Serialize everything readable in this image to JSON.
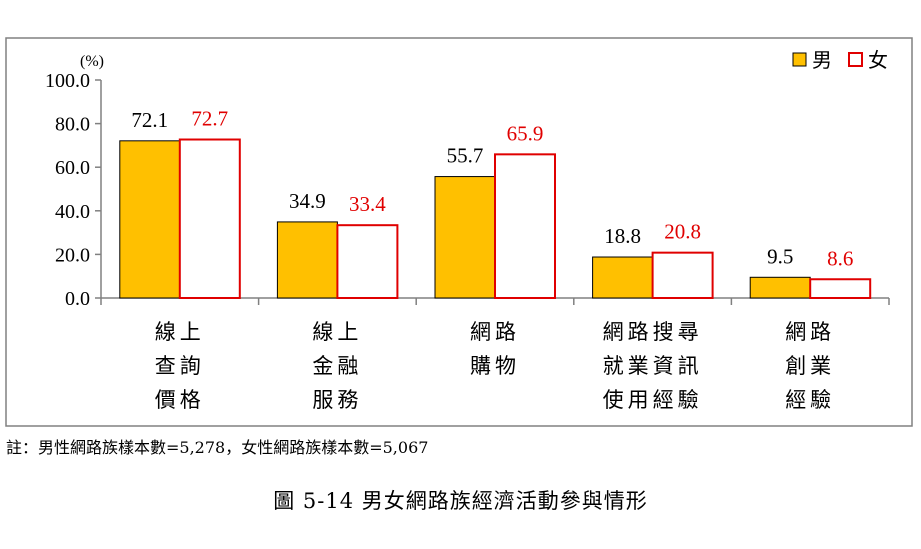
{
  "chart_data": {
    "type": "bar",
    "unit": "(%)",
    "categories": [
      [
        "線上",
        "查詢",
        "價格"
      ],
      [
        "線上",
        "金融",
        "服務"
      ],
      [
        "網路",
        "購物"
      ],
      [
        "網路搜尋",
        "就業資訊",
        "使用經驗"
      ],
      [
        "網路",
        "創業",
        "經驗"
      ]
    ],
    "series": [
      {
        "name": "男",
        "values": [
          72.1,
          34.9,
          55.7,
          18.8,
          9.5
        ],
        "color": "#FFC000",
        "label_color": "#000000"
      },
      {
        "name": "女",
        "values": [
          72.7,
          33.4,
          65.9,
          20.8,
          8.6
        ],
        "color": "#FFFFFF",
        "label_color": "#E00000"
      }
    ],
    "value_labels": {
      "男": [
        "72.1",
        "34.9",
        "55.7",
        "18.8",
        "9.5"
      ],
      "女": [
        "72.7",
        "33.4",
        "65.9",
        "20.8",
        "8.6"
      ]
    },
    "yticks": [
      "0.0",
      "20.0",
      "40.0",
      "60.0",
      "80.0",
      "100.0"
    ],
    "ylim": [
      0,
      100
    ],
    "grid": false,
    "legend": "top-right",
    "border_color": "#E00000",
    "frame_color": "#808080"
  },
  "note": "註：男性網路族樣本數=5,278，女性網路族樣本數=5,067",
  "caption": "圖 5-14  男女網路族經濟活動參與情形"
}
